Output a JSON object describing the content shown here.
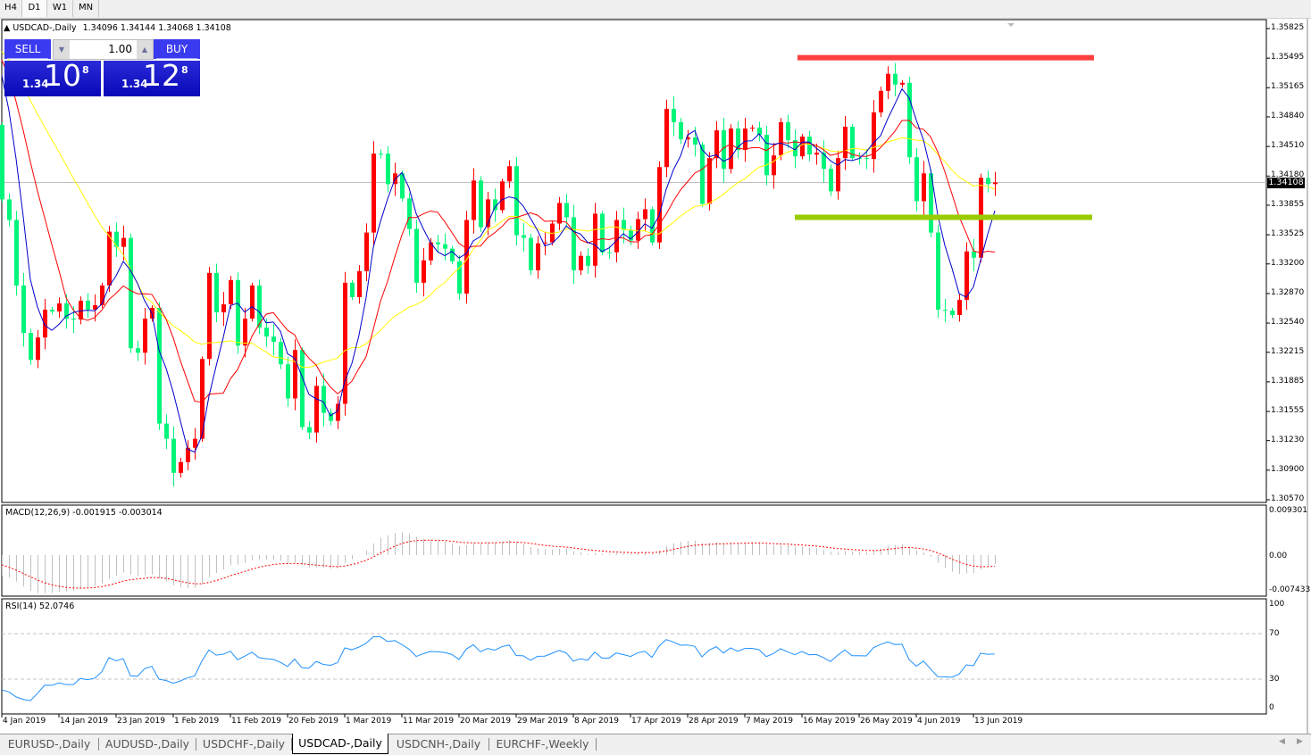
{
  "toolbar": {
    "timeframes": [
      "H4",
      "D1",
      "W1",
      "MN"
    ],
    "selected": "D1"
  },
  "chart": {
    "symbol_title": "USDCAD-,Daily",
    "ohlc_text": "1.34096 1.34144 1.34068 1.34108",
    "current_price": "1.34108"
  },
  "trade_panel": {
    "sell_label": "SELL",
    "buy_label": "BUY",
    "lot_value": "1.00",
    "sell_price": {
      "prefix": "1.34",
      "big": "10",
      "sup": "8"
    },
    "buy_price": {
      "prefix": "1.34",
      "big": "12",
      "sup": "8"
    }
  },
  "macd": {
    "label": "MACD(12,26,9) -0.001915 -0.003014",
    "axis": [
      "0.009301",
      "0.00",
      "-0.007433"
    ]
  },
  "rsi": {
    "label": "RSI(14) 52.0746",
    "axis": [
      "100",
      "70",
      "30",
      "0"
    ]
  },
  "tabs": [
    "EURUSD-,Daily",
    "AUDUSD-,Daily",
    "USDCHF-,Daily",
    "USDCAD-,Daily",
    "USDCNH-,Daily",
    "EURCHF-,Weekly"
  ],
  "active_tab": "USDCAD-,Daily",
  "colors": {
    "bull": "#ff0000",
    "bear": "#00f57a",
    "ma_fast": "#0000cc",
    "ma_mid": "#ff0000",
    "ma_slow": "#ffff00",
    "resistance": "#ff4040",
    "support": "#99cc00",
    "macd_hist": "#c0c0c0",
    "macd_signal": "#ff0000",
    "rsi_line": "#1e90ff"
  },
  "chart_data": {
    "type": "candlestick",
    "price_axis_ticks": [
      "1.35825",
      "1.35495",
      "1.35165",
      "1.34840",
      "1.34510",
      "1.34180",
      "1.33855",
      "1.33525",
      "1.33200",
      "1.32870",
      "1.32540",
      "1.32215",
      "1.31885",
      "1.31555",
      "1.31230",
      "1.30900",
      "1.30570"
    ],
    "ylim": [
      1.3057,
      1.35825
    ],
    "x_tick_labels": [
      "4 Jan 2019",
      "14 Jan 2019",
      "23 Jan 2019",
      "1 Feb 2019",
      "11 Feb 2019",
      "20 Feb 2019",
      "1 Mar 2019",
      "11 Mar 2019",
      "20 Mar 2019",
      "29 Mar 2019",
      "8 Apr 2019",
      "17 Apr 2019",
      "28 Apr 2019",
      "7 May 2019",
      "16 May 2019",
      "26 May 2019",
      "4 Jun 2019",
      "13 Jun 2019"
    ],
    "first_open": 1.3475,
    "closes": [
      1.3392,
      1.3369,
      1.3296,
      1.3243,
      1.3213,
      1.3238,
      1.3269,
      1.3267,
      1.3276,
      1.3259,
      1.3258,
      1.3279,
      1.3269,
      1.3274,
      1.3296,
      1.3356,
      1.3339,
      1.3349,
      1.3226,
      1.3221,
      1.3259,
      1.3271,
      1.3142,
      1.3125,
      1.3087,
      1.3099,
      1.3115,
      1.3125,
      1.3214,
      1.331,
      1.3266,
      1.3275,
      1.3302,
      1.3229,
      1.3259,
      1.3296,
      1.3249,
      1.3239,
      1.3233,
      1.3208,
      1.317,
      1.3224,
      1.3138,
      1.3132,
      1.3184,
      1.3154,
      1.3145,
      1.3164,
      1.3299,
      1.3283,
      1.3312,
      1.3355,
      1.3443,
      1.3443,
      1.3409,
      1.3421,
      1.3393,
      1.3359,
      1.3299,
      1.3324,
      1.3344,
      1.3342,
      1.3337,
      1.3323,
      1.3287,
      1.3369,
      1.3413,
      1.3361,
      1.3392,
      1.338,
      1.3412,
      1.3429,
      1.3352,
      1.3349,
      1.3313,
      1.3343,
      1.3344,
      1.3365,
      1.3388,
      1.3372,
      1.3313,
      1.3329,
      1.3318,
      1.3376,
      1.3333,
      1.3333,
      1.3369,
      1.3358,
      1.3346,
      1.337,
      1.3381,
      1.3344,
      1.3428,
      1.3493,
      1.3478,
      1.3459,
      1.3461,
      1.3453,
      1.3387,
      1.3438,
      1.3469,
      1.3426,
      1.3471,
      1.3447,
      1.3471,
      1.3472,
      1.3464,
      1.3419,
      1.3441,
      1.3478,
      1.3458,
      1.344,
      1.3462,
      1.3442,
      1.3444,
      1.3426,
      1.3401,
      1.3438,
      1.3473,
      1.3438,
      1.3438,
      1.3437,
      1.3489,
      1.3513,
      1.3532,
      1.352,
      1.3522,
      1.3439,
      1.339,
      1.3421,
      1.3355,
      1.3269,
      1.3268,
      1.3263,
      1.328,
      1.3334,
      1.3327,
      1.3416,
      1.3409,
      1.34108
    ],
    "horizontal_lines": [
      {
        "price": 1.355,
        "color": "#ff4040"
      },
      {
        "price": 1.3372,
        "color": "#99cc00"
      }
    ],
    "macd_range": [
      -0.007433,
      0.009301
    ],
    "rsi_levels": [
      30,
      70
    ],
    "rsi_range": [
      0,
      100
    ]
  }
}
